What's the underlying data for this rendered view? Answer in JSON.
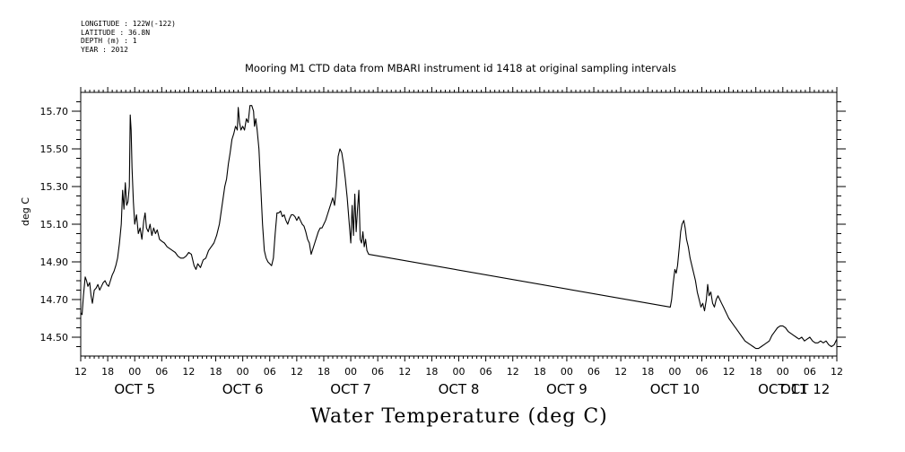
{
  "header": {
    "longitude": "LONGITUDE : 122W(-122)",
    "latitude": "LATITUDE : 36.8N",
    "depth": "DEPTH (m) : 1",
    "year": "YEAR : 2012"
  },
  "chart_data": {
    "type": "line",
    "title": "Mooring M1 CTD data from MBARI instrument id 1418 at original sampling intervals",
    "xlabel": "",
    "ylabel": "deg C",
    "bottom_title": "Water Temperature (deg C)",
    "ylim": [
      14.4,
      15.8
    ],
    "yticks": [
      "14.50",
      "14.70",
      "14.90",
      "15.10",
      "15.30",
      "15.50",
      "15.70"
    ],
    "x_unit": "hours since OCT 4 12:00",
    "xlim": [
      0,
      168
    ],
    "hour_tick_labels": [
      "12",
      "18",
      "00",
      "06",
      "12",
      "18",
      "00",
      "06",
      "12",
      "18",
      "00",
      "06",
      "12",
      "18",
      "00",
      "06",
      "12",
      "18",
      "00",
      "06",
      "12",
      "18",
      "00",
      "06",
      "12",
      "18",
      "00",
      "06",
      "12"
    ],
    "day_labels": [
      {
        "label": "OCT  5",
        "x": 12
      },
      {
        "label": "OCT  6",
        "x": 36
      },
      {
        "label": "OCT  7",
        "x": 60
      },
      {
        "label": "OCT  8",
        "x": 84
      },
      {
        "label": "OCT  9",
        "x": 108
      },
      {
        "label": "OCT 10",
        "x": 132
      },
      {
        "label": "OCT 11",
        "x": 156
      },
      {
        "label": "OCT 12",
        "x": 180
      }
    ],
    "grid": false,
    "series": [
      {
        "points": [
          [
            0,
            14.63
          ],
          [
            0.3,
            14.62
          ],
          [
            0.6,
            14.72
          ],
          [
            1,
            14.82
          ],
          [
            1.3,
            14.8
          ],
          [
            1.6,
            14.77
          ],
          [
            2,
            14.79
          ],
          [
            2.3,
            14.72
          ],
          [
            2.6,
            14.68
          ],
          [
            3,
            14.75
          ],
          [
            3.4,
            14.76
          ],
          [
            3.8,
            14.78
          ],
          [
            4.2,
            14.75
          ],
          [
            4.6,
            14.77
          ],
          [
            5,
            14.79
          ],
          [
            5.4,
            14.8
          ],
          [
            5.8,
            14.78
          ],
          [
            6.2,
            14.77
          ],
          [
            6.6,
            14.8
          ],
          [
            7,
            14.83
          ],
          [
            7.4,
            14.85
          ],
          [
            7.8,
            14.88
          ],
          [
            8.2,
            14.92
          ],
          [
            8.6,
            15.0
          ],
          [
            9,
            15.1
          ],
          [
            9.3,
            15.28
          ],
          [
            9.6,
            15.18
          ],
          [
            9.9,
            15.32
          ],
          [
            10.2,
            15.2
          ],
          [
            10.5,
            15.22
          ],
          [
            10.8,
            15.3
          ],
          [
            11,
            15.68
          ],
          [
            11.2,
            15.6
          ],
          [
            11.4,
            15.4
          ],
          [
            11.7,
            15.22
          ],
          [
            12,
            15.1
          ],
          [
            12.4,
            15.15
          ],
          [
            12.8,
            15.05
          ],
          [
            13.2,
            15.08
          ],
          [
            13.6,
            15.02
          ],
          [
            14,
            15.12
          ],
          [
            14.3,
            15.16
          ],
          [
            14.6,
            15.08
          ],
          [
            15,
            15.06
          ],
          [
            15.4,
            15.1
          ],
          [
            15.8,
            15.04
          ],
          [
            16.2,
            15.08
          ],
          [
            16.6,
            15.05
          ],
          [
            17,
            15.07
          ],
          [
            17.5,
            15.02
          ],
          [
            18,
            15.01
          ],
          [
            18.6,
            15.0
          ],
          [
            19.2,
            14.98
          ],
          [
            19.8,
            14.97
          ],
          [
            20.4,
            14.96
          ],
          [
            21,
            14.95
          ],
          [
            21.6,
            14.93
          ],
          [
            22.2,
            14.92
          ],
          [
            22.8,
            14.92
          ],
          [
            23.4,
            14.93
          ],
          [
            24,
            14.95
          ],
          [
            24.6,
            14.94
          ],
          [
            25.2,
            14.88
          ],
          [
            25.6,
            14.86
          ],
          [
            26,
            14.89
          ],
          [
            26.6,
            14.87
          ],
          [
            27.2,
            14.91
          ],
          [
            27.8,
            14.92
          ],
          [
            28.4,
            14.96
          ],
          [
            29,
            14.98
          ],
          [
            29.6,
            15.0
          ],
          [
            30.2,
            15.04
          ],
          [
            30.8,
            15.1
          ],
          [
            31.4,
            15.2
          ],
          [
            32,
            15.3
          ],
          [
            32.4,
            15.34
          ],
          [
            32.8,
            15.42
          ],
          [
            33.2,
            15.48
          ],
          [
            33.6,
            15.55
          ],
          [
            34,
            15.58
          ],
          [
            34.4,
            15.62
          ],
          [
            34.8,
            15.6
          ],
          [
            35,
            15.72
          ],
          [
            35.3,
            15.64
          ],
          [
            35.6,
            15.6
          ],
          [
            36,
            15.62
          ],
          [
            36.4,
            15.6
          ],
          [
            36.8,
            15.66
          ],
          [
            37.2,
            15.64
          ],
          [
            37.6,
            15.73
          ],
          [
            38,
            15.73
          ],
          [
            38.4,
            15.7
          ],
          [
            38.6,
            15.62
          ],
          [
            38.9,
            15.66
          ],
          [
            39.2,
            15.6
          ],
          [
            39.6,
            15.5
          ],
          [
            40,
            15.3
          ],
          [
            40.4,
            15.1
          ],
          [
            40.8,
            14.96
          ],
          [
            41.2,
            14.92
          ],
          [
            41.6,
            14.9
          ],
          [
            42,
            14.89
          ],
          [
            42.4,
            14.88
          ],
          [
            42.8,
            14.92
          ],
          [
            43.2,
            15.05
          ],
          [
            43.6,
            15.16
          ],
          [
            44,
            15.16
          ],
          [
            44.4,
            15.17
          ],
          [
            44.8,
            15.14
          ],
          [
            45.2,
            15.15
          ],
          [
            45.6,
            15.12
          ],
          [
            46,
            15.1
          ],
          [
            46.4,
            15.13
          ],
          [
            46.8,
            15.15
          ],
          [
            47.2,
            15.15
          ],
          [
            47.6,
            15.14
          ],
          [
            48,
            15.12
          ],
          [
            48.4,
            15.14
          ],
          [
            48.8,
            15.12
          ],
          [
            49.2,
            15.1
          ],
          [
            49.6,
            15.09
          ],
          [
            50,
            15.06
          ],
          [
            50.4,
            15.02
          ],
          [
            50.8,
            15.0
          ],
          [
            51.2,
            14.94
          ],
          [
            51.6,
            14.97
          ],
          [
            52,
            15.0
          ],
          [
            52.4,
            15.03
          ],
          [
            52.8,
            15.06
          ],
          [
            53.2,
            15.08
          ],
          [
            53.6,
            15.08
          ],
          [
            54,
            15.1
          ],
          [
            54.4,
            15.12
          ],
          [
            54.8,
            15.15
          ],
          [
            55.2,
            15.18
          ],
          [
            55.6,
            15.21
          ],
          [
            56,
            15.24
          ],
          [
            56.4,
            15.2
          ],
          [
            56.8,
            15.3
          ],
          [
            57.2,
            15.46
          ],
          [
            57.6,
            15.5
          ],
          [
            58,
            15.48
          ],
          [
            58.4,
            15.42
          ],
          [
            58.8,
            15.34
          ],
          [
            59.2,
            15.24
          ],
          [
            59.6,
            15.12
          ],
          [
            60,
            15.0
          ],
          [
            60.3,
            15.2
          ],
          [
            60.6,
            15.04
          ],
          [
            60.9,
            15.26
          ],
          [
            61.2,
            15.06
          ],
          [
            61.5,
            15.18
          ],
          [
            61.8,
            15.28
          ],
          [
            62.1,
            15.02
          ],
          [
            62.4,
            15.0
          ],
          [
            62.7,
            15.06
          ],
          [
            63,
            14.98
          ],
          [
            63.3,
            15.02
          ],
          [
            63.6,
            14.96
          ],
          [
            64,
            14.94
          ],
          [
            131,
            14.66
          ],
          [
            131.3,
            14.7
          ],
          [
            131.6,
            14.78
          ],
          [
            132,
            14.86
          ],
          [
            132.3,
            14.84
          ],
          [
            132.6,
            14.88
          ],
          [
            133,
            14.98
          ],
          [
            133.3,
            15.06
          ],
          [
            133.6,
            15.1
          ],
          [
            134,
            15.12
          ],
          [
            134.3,
            15.08
          ],
          [
            134.6,
            15.02
          ],
          [
            135,
            14.98
          ],
          [
            135.4,
            14.92
          ],
          [
            135.8,
            14.88
          ],
          [
            136.2,
            14.84
          ],
          [
            136.6,
            14.8
          ],
          [
            137,
            14.74
          ],
          [
            137.4,
            14.7
          ],
          [
            137.8,
            14.66
          ],
          [
            138.2,
            14.68
          ],
          [
            138.6,
            14.64
          ],
          [
            139,
            14.7
          ],
          [
            139.3,
            14.78
          ],
          [
            139.6,
            14.72
          ],
          [
            140,
            14.74
          ],
          [
            140.4,
            14.68
          ],
          [
            140.8,
            14.66
          ],
          [
            141.2,
            14.7
          ],
          [
            141.6,
            14.72
          ],
          [
            142,
            14.7
          ],
          [
            142.4,
            14.68
          ],
          [
            142.8,
            14.66
          ],
          [
            143.2,
            14.64
          ],
          [
            143.6,
            14.62
          ],
          [
            144,
            14.6
          ],
          [
            144.6,
            14.58
          ],
          [
            145.2,
            14.56
          ],
          [
            145.8,
            14.54
          ],
          [
            146.4,
            14.52
          ],
          [
            147,
            14.5
          ],
          [
            147.6,
            14.48
          ],
          [
            148.2,
            14.47
          ],
          [
            148.8,
            14.46
          ],
          [
            149.4,
            14.45
          ],
          [
            150,
            14.44
          ],
          [
            150.6,
            14.44
          ],
          [
            151.2,
            14.45
          ],
          [
            151.8,
            14.46
          ],
          [
            152.4,
            14.47
          ],
          [
            153,
            14.48
          ],
          [
            153.6,
            14.51
          ],
          [
            154.2,
            14.53
          ],
          [
            154.8,
            14.55
          ],
          [
            155.4,
            14.56
          ],
          [
            156,
            14.56
          ],
          [
            156.6,
            14.55
          ],
          [
            157.2,
            14.53
          ],
          [
            157.8,
            14.52
          ],
          [
            158.4,
            14.51
          ],
          [
            159,
            14.5
          ],
          [
            159.6,
            14.49
          ],
          [
            160.2,
            14.5
          ],
          [
            160.8,
            14.48
          ],
          [
            161.4,
            14.49
          ],
          [
            162,
            14.5
          ],
          [
            162.6,
            14.48
          ],
          [
            163.2,
            14.47
          ],
          [
            163.8,
            14.47
          ],
          [
            164.4,
            14.48
          ],
          [
            165,
            14.47
          ],
          [
            165.6,
            14.48
          ],
          [
            166.2,
            14.46
          ],
          [
            166.8,
            14.45
          ],
          [
            167.4,
            14.46
          ],
          [
            168,
            14.49
          ]
        ]
      }
    ]
  }
}
